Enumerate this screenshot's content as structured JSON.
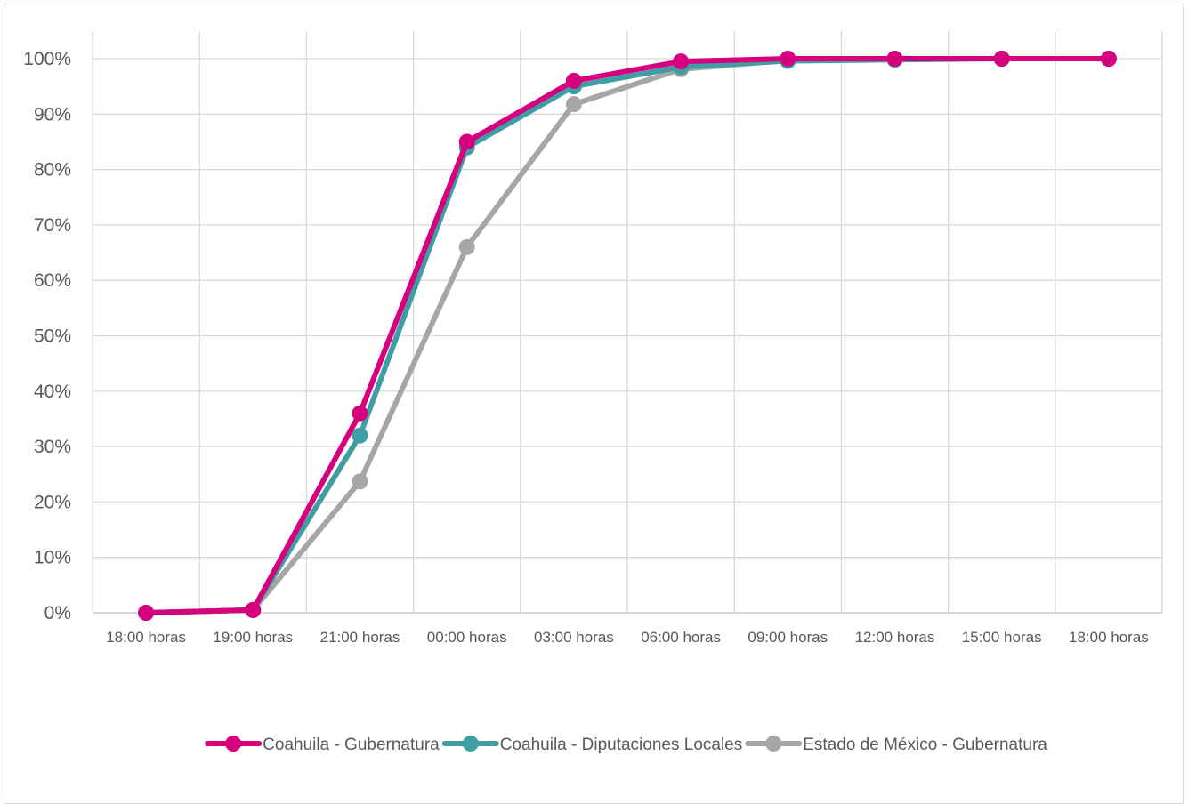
{
  "chart_data": {
    "type": "line",
    "categories": [
      "18:00 horas",
      "19:00 horas",
      "21:00 horas",
      "00:00 horas",
      "03:00 horas",
      "06:00 horas",
      "09:00 horas",
      "12:00 horas",
      "15:00 horas",
      "18:00 horas"
    ],
    "y_ticks": [
      "0%",
      "10%",
      "20%",
      "30%",
      "40%",
      "50%",
      "60%",
      "70%",
      "80%",
      "90%",
      "100%"
    ],
    "ylim": [
      0,
      100
    ],
    "grid": true,
    "legend_position": "bottom",
    "series": [
      {
        "name": "Coahuila - Gubernatura",
        "color": "#d6007f",
        "values": [
          0,
          0.5,
          36,
          85,
          96,
          99.5,
          100,
          100,
          100,
          100
        ]
      },
      {
        "name": "Coahuila - Diputaciones Locales",
        "color": "#3f9ea3",
        "values": [
          0,
          0.5,
          32,
          84,
          95,
          98.5,
          99.6,
          99.8,
          100,
          100
        ]
      },
      {
        "name": "Estado de México - Gubernatura",
        "color": "#a6a6a6",
        "values": [
          0,
          0.5,
          23.7,
          66,
          91.8,
          98.1,
          99.7,
          100,
          100,
          100
        ]
      }
    ]
  }
}
